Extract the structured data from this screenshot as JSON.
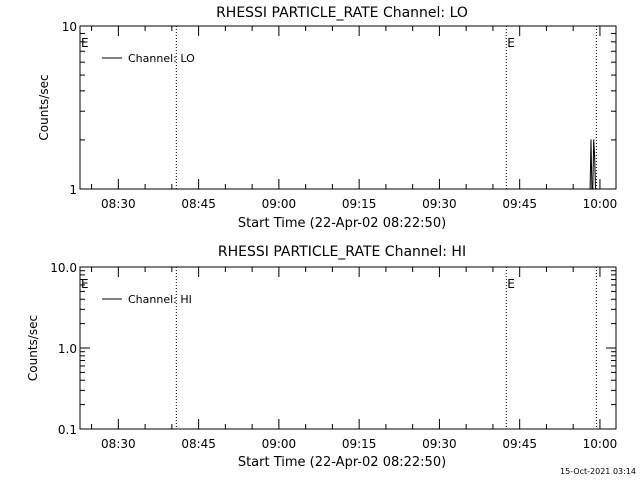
{
  "footer_timestamp": "15-Oct-2021 03:14",
  "chart_data": [
    {
      "type": "line",
      "title": "RHESSI PARTICLE_RATE Channel: LO",
      "xlabel": "Start Time (22-Apr-02 08:22:50)",
      "ylabel": "Counts/sec",
      "yscale": "log",
      "ylim": [
        1,
        10
      ],
      "ytick_labels": [
        "1",
        "10"
      ],
      "xlim": [
        "08:22:50",
        "10:03:00"
      ],
      "xtick_labels": [
        "08:30",
        "08:45",
        "09:00",
        "09:15",
        "09:30",
        "09:45",
        "10:00"
      ],
      "legend": {
        "entries": [
          "Channel: LO"
        ],
        "placement": "top-left"
      },
      "event_markers": [
        {
          "time": "08:40:50",
          "label": ""
        },
        {
          "time": "09:42:30",
          "label": "E"
        },
        {
          "time": "09:59:20",
          "label": ""
        }
      ],
      "start_marker_label": "E",
      "series": [
        {
          "name": "Channel: LO",
          "x": [
            "09:58:10",
            "09:58:20",
            "09:58:30",
            "09:58:40",
            "09:58:50",
            "09:59:00",
            "09:59:10"
          ],
          "y": [
            1,
            2,
            1,
            1,
            2,
            1.6,
            1
          ]
        }
      ]
    },
    {
      "type": "line",
      "title": "RHESSI PARTICLE_RATE Channel: HI",
      "xlabel": "Start Time (22-Apr-02 08:22:50)",
      "ylabel": "Counts/sec",
      "yscale": "log",
      "ylim": [
        0.1,
        10
      ],
      "ytick_labels": [
        "0.1",
        "1.0",
        "10.0"
      ],
      "xlim": [
        "08:22:50",
        "10:03:00"
      ],
      "xtick_labels": [
        "08:30",
        "08:45",
        "09:00",
        "09:15",
        "09:30",
        "09:45",
        "10:00"
      ],
      "legend": {
        "entries": [
          "Channel: HI"
        ],
        "placement": "top-left"
      },
      "event_markers": [
        {
          "time": "08:40:50",
          "label": ""
        },
        {
          "time": "09:42:30",
          "label": "E"
        },
        {
          "time": "09:59:20",
          "label": ""
        }
      ],
      "start_marker_label": "E",
      "series": [
        {
          "name": "Channel: HI",
          "x": [],
          "y": []
        }
      ]
    }
  ]
}
